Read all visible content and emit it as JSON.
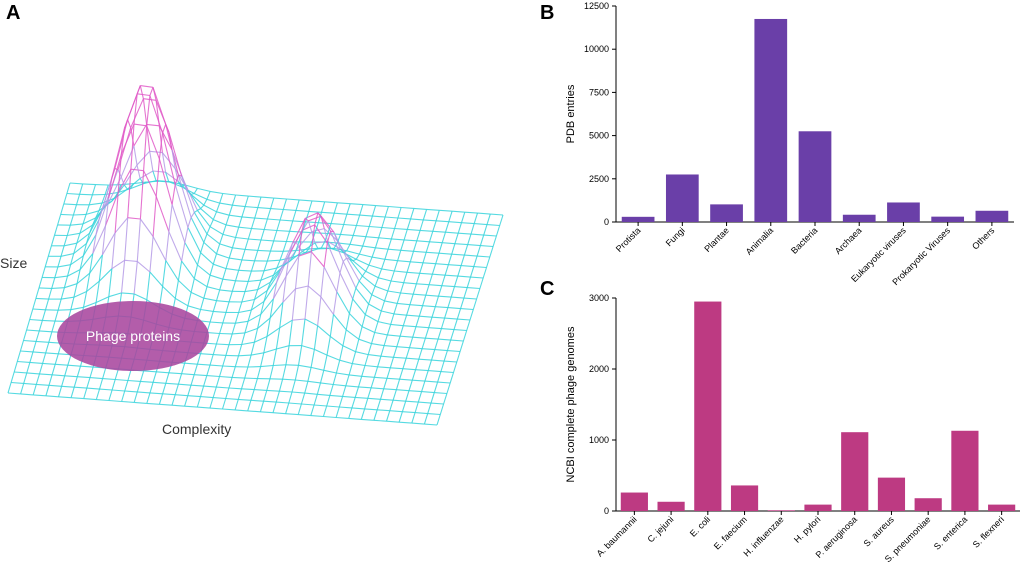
{
  "panels": {
    "a": "A",
    "b": "B",
    "c": "C"
  },
  "surface": {
    "y_label": "Size",
    "x_label": "Complexity",
    "region_label": "Phage proteins",
    "mesh_color": "#38d4dc",
    "peak_color": "#e05bc8",
    "region_color": "#a8479e"
  },
  "chart_data": [
    {
      "type": "bar",
      "panel": "B",
      "title": "",
      "xlabel": "",
      "ylabel": "PDB entries",
      "categories": [
        "Protista",
        "Fungi",
        "Plantae",
        "Animalia",
        "Bacteria",
        "Archaea",
        "Eukaryotic viruses",
        "Prokaryotic Viruses",
        "Others"
      ],
      "values": [
        300,
        2750,
        1020,
        11750,
        5250,
        420,
        1130,
        310,
        650
      ],
      "ylim": [
        0,
        12500
      ],
      "yticks": [
        0,
        2500,
        5000,
        7500,
        10000,
        12500
      ],
      "color": "#6a3fa8",
      "grid": false
    },
    {
      "type": "bar",
      "panel": "C",
      "title": "",
      "xlabel": "",
      "ylabel": "NCBI complete phage genomes",
      "categories": [
        "A. baumannii",
        "C. jejuni",
        "E. coli",
        "E. faecium",
        "H. influenzae",
        "H. pylori",
        "P. aeruginosa",
        "S. aureus",
        "S. pneumoniae",
        "S. enterica",
        "S. flexneri"
      ],
      "values": [
        260,
        130,
        2950,
        360,
        10,
        90,
        1110,
        470,
        180,
        1130,
        90
      ],
      "ylim": [
        0,
        3000
      ],
      "yticks": [
        0,
        1000,
        2000,
        3000
      ],
      "color": "#bd3a82",
      "grid": false
    }
  ]
}
